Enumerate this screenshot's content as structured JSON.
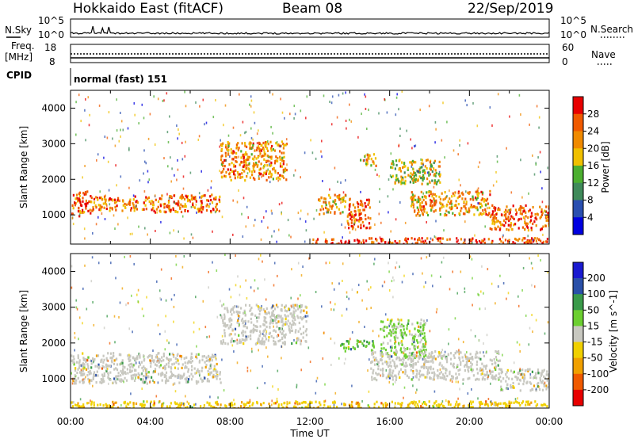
{
  "header": {
    "station": "Hokkaido East (fitACF)",
    "beam": "Beam 08",
    "date": "22/Sep/2019"
  },
  "top_panels": {
    "nsky_label": "N.Sky",
    "nsky_ticks": [
      "10^5",
      "10^0"
    ],
    "nsearch_label": "N.Search",
    "nsearch_ticks": [
      "10^5",
      "10^0"
    ],
    "freq_label": "Freq.",
    "freq_unit": "[MHz]",
    "freq_ticks": [
      "18",
      "8"
    ],
    "nave_label": "Nave",
    "nave_ticks": [
      "60",
      "0"
    ],
    "cpid_label": "CPID",
    "cpid_value": "normal (fast) 151"
  },
  "colors": {
    "power_scale": [
      "#0000e0",
      "#2a4fb0",
      "#3f8a5a",
      "#4caf30",
      "#f0c000",
      "#f08a00",
      "#f05a00",
      "#e80000"
    ],
    "velocity_scale": [
      "#e80000",
      "#f05a00",
      "#f0a000",
      "#f0d000",
      "#c8c8c0",
      "#6ccf30",
      "#3a9a4a",
      "#2a50a8",
      "#1a1ad0"
    ],
    "background_scatter": "#c8c8c0"
  },
  "chart_data": [
    {
      "type": "heatmap",
      "ylabel": "Slant Range [km]",
      "xlabel": "",
      "x_ticks": [
        "00:00",
        "04:00",
        "08:00",
        "12:00",
        "16:00",
        "20:00",
        "00:00"
      ],
      "x_range_hours": [
        0,
        24
      ],
      "y_ticks": [
        1000,
        2000,
        3000,
        4000
      ],
      "ylim": [
        180,
        4500
      ],
      "colorbar_label": "Power [dB]",
      "colorbar_ticks": [
        "28",
        "24",
        "20",
        "16",
        "12",
        "8",
        "4"
      ],
      "colorbar_range": [
        0,
        32
      ],
      "echo_regions": [
        {
          "t": [
            0.0,
            1.0
          ],
          "r": [
            1000,
            1700
          ],
          "level": 26
        },
        {
          "t": [
            1.0,
            4.0
          ],
          "r": [
            1150,
            1550
          ],
          "level": 24
        },
        {
          "t": [
            4.0,
            7.5
          ],
          "r": [
            1100,
            1600
          ],
          "level": 25
        },
        {
          "t": [
            7.5,
            10.8
          ],
          "r": [
            2000,
            3100
          ],
          "level": 23
        },
        {
          "t": [
            12.4,
            13.8
          ],
          "r": [
            1050,
            1600
          ],
          "level": 22
        },
        {
          "t": [
            13.8,
            15.0
          ],
          "r": [
            600,
            1500
          ],
          "level": 26
        },
        {
          "t": [
            14.5,
            15.3
          ],
          "r": [
            2400,
            2750
          ],
          "level": 20
        },
        {
          "t": [
            16.0,
            18.5
          ],
          "r": [
            1900,
            2600
          ],
          "level": 18
        },
        {
          "t": [
            17.0,
            21.0
          ],
          "r": [
            1000,
            1700
          ],
          "level": 22
        },
        {
          "t": [
            21.0,
            24.0
          ],
          "r": [
            600,
            1300
          ],
          "level": 26
        },
        {
          "t": [
            12.0,
            24.0
          ],
          "r": [
            200,
            380
          ],
          "level": 28
        }
      ]
    },
    {
      "type": "heatmap",
      "ylabel": "Slant Range [km]",
      "xlabel": "Time UT",
      "x_ticks": [
        "00:00",
        "04:00",
        "08:00",
        "12:00",
        "16:00",
        "20:00",
        "00:00"
      ],
      "x_range_hours": [
        0,
        24
      ],
      "y_ticks": [
        1000,
        2000,
        3000,
        4000
      ],
      "ylim": [
        180,
        4500
      ],
      "colorbar_label": "Velocity [m s^-1]",
      "colorbar_ticks": [
        "200",
        "100",
        "50",
        "15",
        "-15",
        "-50",
        "-100",
        "-200"
      ],
      "colorbar_range": [
        -250,
        250
      ],
      "echo_regions": [
        {
          "t": [
            0.0,
            7.5
          ],
          "r": [
            900,
            1750
          ],
          "v": 0
        },
        {
          "t": [
            7.5,
            11.8
          ],
          "r": [
            2000,
            3100
          ],
          "v": 0
        },
        {
          "t": [
            13.5,
            15.2
          ],
          "r": [
            1800,
            2100
          ],
          "v": 40
        },
        {
          "t": [
            15.5,
            17.8
          ],
          "r": [
            1600,
            2700
          ],
          "v": 20
        },
        {
          "t": [
            15.0,
            21.5
          ],
          "r": [
            1000,
            1800
          ],
          "v": 0
        },
        {
          "t": [
            21.5,
            24.0
          ],
          "r": [
            700,
            1300
          ],
          "v": 0
        },
        {
          "t": [
            0.0,
            24.0
          ],
          "r": [
            200,
            400
          ],
          "v": -40
        }
      ]
    }
  ]
}
